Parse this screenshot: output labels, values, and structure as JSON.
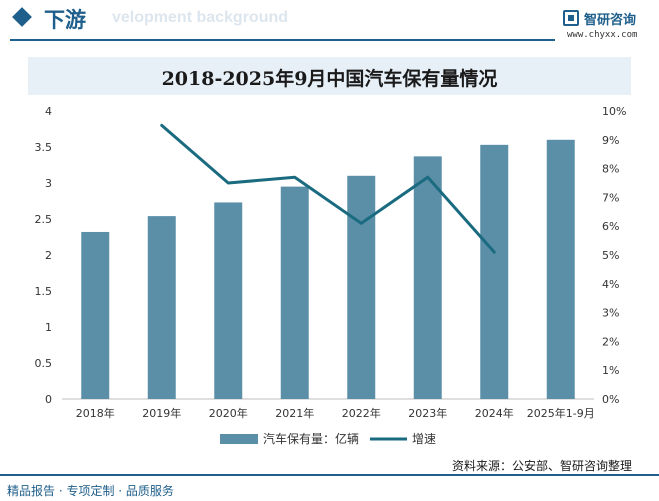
{
  "header": {
    "title": "下游",
    "subtitle_watermark": "velopment background",
    "logo_name": "智研咨询",
    "logo_url": "www.chyxx.com"
  },
  "chart_data": {
    "type": "bar",
    "title": "2018-2025年9月中国汽车保有量情况",
    "categories": [
      "2018年",
      "2019年",
      "2020年",
      "2021年",
      "2022年",
      "2023年",
      "2024年",
      "2025年1-9月"
    ],
    "series": [
      {
        "name": "汽车保有量：亿辆",
        "type": "bar",
        "axis": "left",
        "color": "#5b8fa8",
        "values": [
          2.32,
          2.54,
          2.73,
          2.95,
          3.1,
          3.37,
          3.53,
          3.6
        ]
      },
      {
        "name": "增速",
        "type": "line",
        "axis": "right",
        "color": "#1a6b80",
        "values": [
          null,
          9.5,
          7.5,
          7.7,
          6.1,
          7.7,
          5.1,
          null
        ]
      }
    ],
    "y_left": {
      "min": 0,
      "max": 4,
      "ticks": [
        0,
        0.5,
        1,
        1.5,
        2,
        2.5,
        3,
        3.5,
        4
      ],
      "tick_labels": [
        "0",
        "0.5",
        "1",
        "1.5",
        "2",
        "2.5",
        "3",
        "3.5",
        "4"
      ]
    },
    "y_right": {
      "min": 0,
      "max": 10,
      "ticks": [
        0,
        1,
        2,
        3,
        4,
        5,
        6,
        7,
        8,
        9,
        10
      ],
      "tick_labels": [
        "0%",
        "1%",
        "2%",
        "3%",
        "4%",
        "5%",
        "6%",
        "7%",
        "8%",
        "9%",
        "10%"
      ]
    },
    "grid": false,
    "legend_position": "bottom"
  },
  "footer": {
    "left": "精品报告 · 专项定制 · 品质服务",
    "source": "资料来源：公安部、智研咨询整理"
  }
}
